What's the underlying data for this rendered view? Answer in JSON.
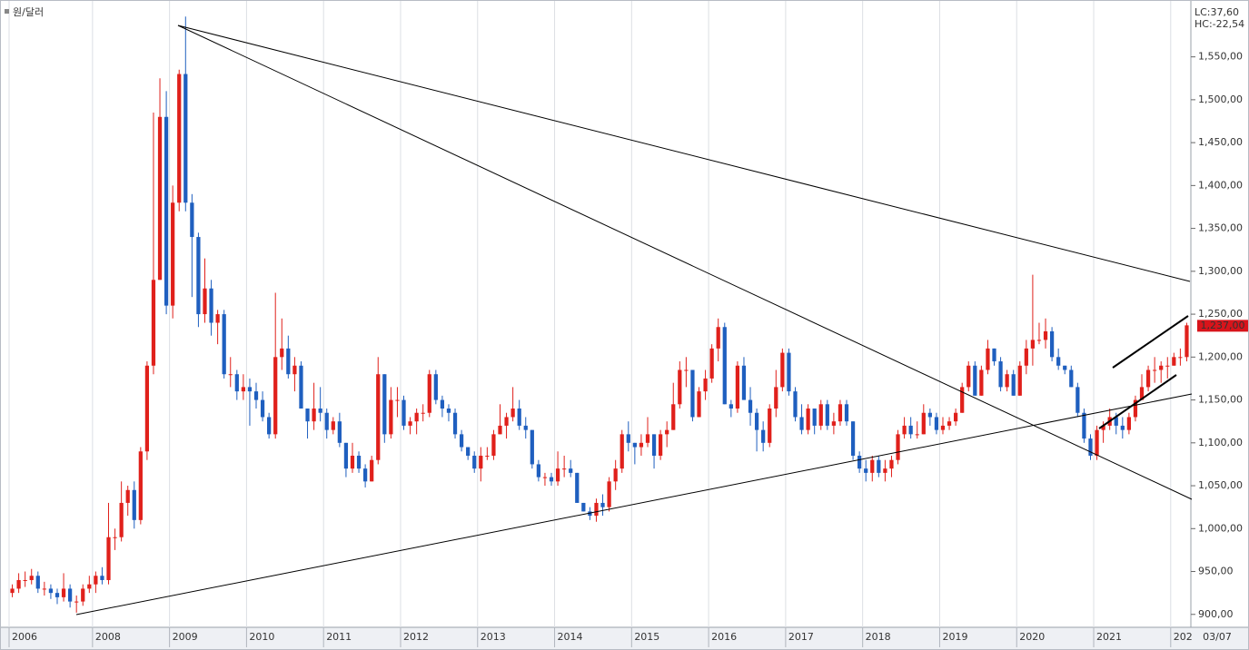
{
  "chart_data": {
    "type": "candlestick",
    "title": "원/달러",
    "indicators": [
      {
        "label": "LC:37,60",
        "color": "#d0141c"
      },
      {
        "label": "HC:-22,54",
        "color": "#1f5fbf"
      }
    ],
    "up_color": "#e0201b",
    "down_color": "#1f5fbf",
    "x_end_label": "03/07",
    "last_price_label": "1,237,00",
    "ylim": [
      886,
      1611
    ],
    "yticks": [
      {
        "value": 900,
        "label": "900,00"
      },
      {
        "value": 950,
        "label": "950,00"
      },
      {
        "value": 1000,
        "label": "1,000,00"
      },
      {
        "value": 1050,
        "label": "1,050,00"
      },
      {
        "value": 1100,
        "label": "1,100,00"
      },
      {
        "value": 1150,
        "label": "1,150,00"
      },
      {
        "value": 1200,
        "label": "1,200,00"
      },
      {
        "value": 1250,
        "label": "1,250,00"
      },
      {
        "value": 1300,
        "label": "1,300,00"
      },
      {
        "value": 1350,
        "label": "1,350,00"
      },
      {
        "value": 1400,
        "label": "1,400,00"
      },
      {
        "value": 1450,
        "label": "1,450,00"
      },
      {
        "value": 1500,
        "label": "1,500,00"
      },
      {
        "value": 1550,
        "label": "1,550,00"
      }
    ],
    "categories": [
      "2006",
      null,
      null,
      null,
      null,
      null,
      null,
      null,
      null,
      null,
      null,
      null,
      null,
      "2008",
      null,
      null,
      null,
      null,
      null,
      null,
      null,
      null,
      null,
      null,
      null,
      "2009",
      null,
      null,
      null,
      null,
      null,
      null,
      null,
      null,
      null,
      null,
      null,
      "2010",
      null,
      null,
      null,
      null,
      null,
      null,
      null,
      null,
      null,
      null,
      null,
      "2011",
      null,
      null,
      null,
      null,
      null,
      null,
      null,
      null,
      null,
      null,
      null,
      "2012",
      null,
      null,
      null,
      null,
      null,
      null,
      null,
      null,
      null,
      null,
      null,
      "2013",
      null,
      null,
      null,
      null,
      null,
      null,
      null,
      null,
      null,
      null,
      null,
      "2014",
      null,
      null,
      null,
      null,
      null,
      null,
      null,
      null,
      null,
      null,
      null,
      "2015",
      null,
      null,
      null,
      null,
      null,
      null,
      null,
      null,
      null,
      null,
      null,
      "2016",
      null,
      null,
      null,
      null,
      null,
      null,
      null,
      null,
      null,
      null,
      null,
      "2017",
      null,
      null,
      null,
      null,
      null,
      null,
      null,
      null,
      null,
      null,
      null,
      "2018",
      null,
      null,
      null,
      null,
      null,
      null,
      null,
      null,
      null,
      null,
      null,
      "2019",
      null,
      null,
      null,
      null,
      null,
      null,
      null,
      null,
      null,
      null,
      null,
      "2020",
      null,
      null,
      null,
      null,
      null,
      null,
      null,
      null,
      null,
      null,
      null,
      "2021",
      null,
      null,
      null,
      null,
      null,
      null,
      null,
      null,
      null,
      null,
      null,
      "202",
      null,
      null
    ],
    "open": [
      925,
      930,
      940,
      940,
      945,
      930,
      930,
      925,
      920,
      930,
      915,
      915,
      930,
      935,
      945,
      940,
      990,
      990,
      1030,
      1045,
      1010,
      1090,
      1190,
      1290,
      1480,
      1260,
      1380,
      1530,
      1380,
      1340,
      1250,
      1280,
      1240,
      1250,
      1180,
      1180,
      1160,
      1165,
      1160,
      1150,
      1130,
      1110,
      1200,
      1210,
      1180,
      1190,
      1140,
      1125,
      1140,
      1135,
      1115,
      1125,
      1100,
      1070,
      1085,
      1070,
      1055,
      1080,
      1180,
      1110,
      1150,
      1150,
      1120,
      1125,
      1135,
      1135,
      1180,
      1150,
      1140,
      1135,
      1110,
      1095,
      1085,
      1070,
      1085,
      1085,
      1110,
      1120,
      1130,
      1140,
      1120,
      1115,
      1075,
      1060,
      1060,
      1055,
      1070,
      1070,
      1065,
      1030,
      1020,
      1015,
      1030,
      1025,
      1055,
      1070,
      1110,
      1100,
      1095,
      1100,
      1110,
      1085,
      1110,
      1115,
      1145,
      1185,
      1185,
      1130,
      1160,
      1175,
      1210,
      1235,
      1145,
      1140,
      1190,
      1150,
      1135,
      1115,
      1100,
      1140,
      1165,
      1205,
      1160,
      1130,
      1115,
      1140,
      1120,
      1145,
      1120,
      1125,
      1145,
      1125,
      1085,
      1070,
      1065,
      1080,
      1065,
      1070,
      1080,
      1110,
      1120,
      1110,
      1110,
      1135,
      1130,
      1115,
      1120,
      1125,
      1135,
      1165,
      1190,
      1155,
      1185,
      1210,
      1195,
      1165,
      1180,
      1155,
      1190,
      1210,
      1220,
      1220,
      1230,
      1200,
      1190,
      1185,
      1165,
      1135,
      1105,
      1085,
      1115,
      1120,
      1130,
      1120,
      1115,
      1130,
      1150,
      1165,
      1185,
      1185,
      1190,
      1190,
      1200,
      1200
    ],
    "high": [
      935,
      948,
      950,
      953,
      950,
      938,
      935,
      930,
      948,
      935,
      922,
      935,
      945,
      950,
      955,
      1030,
      1000,
      1055,
      1050,
      1055,
      1095,
      1195,
      1485,
      1525,
      1510,
      1400,
      1535,
      1597,
      1390,
      1345,
      1315,
      1290,
      1255,
      1255,
      1200,
      1185,
      1180,
      1175,
      1170,
      1160,
      1135,
      1275,
      1245,
      1225,
      1200,
      1195,
      1140,
      1170,
      1165,
      1140,
      1130,
      1135,
      1100,
      1100,
      1090,
      1075,
      1085,
      1200,
      1180,
      1165,
      1165,
      1155,
      1130,
      1140,
      1145,
      1185,
      1185,
      1155,
      1145,
      1140,
      1115,
      1095,
      1090,
      1095,
      1095,
      1115,
      1145,
      1135,
      1165,
      1150,
      1130,
      1115,
      1080,
      1065,
      1065,
      1090,
      1085,
      1080,
      1065,
      1030,
      1025,
      1035,
      1040,
      1060,
      1080,
      1115,
      1125,
      1100,
      1110,
      1130,
      1110,
      1115,
      1125,
      1170,
      1195,
      1200,
      1185,
      1165,
      1185,
      1215,
      1245,
      1240,
      1150,
      1195,
      1200,
      1165,
      1140,
      1125,
      1145,
      1185,
      1210,
      1210,
      1165,
      1145,
      1145,
      1140,
      1150,
      1150,
      1135,
      1150,
      1150,
      1125,
      1090,
      1080,
      1085,
      1085,
      1080,
      1085,
      1115,
      1130,
      1130,
      1125,
      1145,
      1140,
      1135,
      1130,
      1130,
      1140,
      1170,
      1195,
      1195,
      1190,
      1220,
      1210,
      1200,
      1185,
      1185,
      1195,
      1220,
      1296,
      1240,
      1245,
      1235,
      1210,
      1190,
      1190,
      1170,
      1140,
      1110,
      1120,
      1125,
      1140,
      1135,
      1130,
      1135,
      1155,
      1180,
      1190,
      1200,
      1195,
      1200,
      1205,
      1210,
      1240
    ],
    "low": [
      920,
      925,
      932,
      935,
      925,
      922,
      918,
      912,
      915,
      908,
      902,
      910,
      925,
      925,
      935,
      935,
      975,
      985,
      1015,
      1000,
      1005,
      1080,
      1180,
      1290,
      1250,
      1245,
      1370,
      1370,
      1270,
      1235,
      1240,
      1225,
      1215,
      1175,
      1165,
      1150,
      1150,
      1120,
      1140,
      1125,
      1105,
      1105,
      1185,
      1175,
      1160,
      1140,
      1105,
      1115,
      1125,
      1105,
      1110,
      1095,
      1060,
      1065,
      1065,
      1048,
      1055,
      1075,
      1100,
      1105,
      1130,
      1115,
      1110,
      1110,
      1125,
      1130,
      1145,
      1130,
      1125,
      1105,
      1090,
      1080,
      1065,
      1055,
      1080,
      1080,
      1110,
      1105,
      1125,
      1115,
      1105,
      1070,
      1055,
      1050,
      1050,
      1050,
      1060,
      1060,
      1030,
      1020,
      1010,
      1008,
      1015,
      1020,
      1045,
      1065,
      1090,
      1075,
      1085,
      1095,
      1070,
      1080,
      1095,
      1115,
      1140,
      1165,
      1125,
      1130,
      1150,
      1170,
      1195,
      1145,
      1130,
      1135,
      1150,
      1120,
      1090,
      1090,
      1095,
      1130,
      1160,
      1155,
      1125,
      1110,
      1110,
      1110,
      1115,
      1115,
      1110,
      1120,
      1120,
      1080,
      1065,
      1055,
      1055,
      1060,
      1055,
      1060,
      1075,
      1105,
      1105,
      1105,
      1110,
      1120,
      1110,
      1110,
      1115,
      1120,
      1135,
      1160,
      1155,
      1155,
      1180,
      1190,
      1160,
      1160,
      1155,
      1155,
      1180,
      1190,
      1215,
      1210,
      1195,
      1185,
      1180,
      1165,
      1130,
      1100,
      1080,
      1080,
      1100,
      1115,
      1110,
      1105,
      1110,
      1125,
      1150,
      1160,
      1170,
      1170,
      1175,
      1190,
      1190,
      1195
    ],
    "close": [
      930,
      940,
      940,
      945,
      930,
      930,
      925,
      920,
      930,
      915,
      915,
      930,
      935,
      945,
      940,
      990,
      990,
      1030,
      1045,
      1010,
      1090,
      1190,
      1290,
      1480,
      1260,
      1380,
      1530,
      1380,
      1340,
      1250,
      1280,
      1240,
      1250,
      1180,
      1180,
      1160,
      1165,
      1160,
      1150,
      1130,
      1110,
      1200,
      1210,
      1180,
      1190,
      1140,
      1125,
      1140,
      1135,
      1115,
      1125,
      1100,
      1070,
      1085,
      1070,
      1055,
      1080,
      1180,
      1110,
      1150,
      1150,
      1120,
      1125,
      1135,
      1135,
      1180,
      1150,
      1140,
      1135,
      1110,
      1095,
      1085,
      1070,
      1085,
      1085,
      1110,
      1120,
      1130,
      1140,
      1120,
      1115,
      1075,
      1060,
      1060,
      1055,
      1070,
      1070,
      1065,
      1030,
      1020,
      1015,
      1030,
      1025,
      1055,
      1070,
      1110,
      1100,
      1095,
      1100,
      1110,
      1085,
      1110,
      1115,
      1145,
      1185,
      1185,
      1130,
      1160,
      1175,
      1210,
      1235,
      1145,
      1140,
      1190,
      1150,
      1135,
      1115,
      1100,
      1140,
      1165,
      1205,
      1160,
      1130,
      1115,
      1140,
      1120,
      1145,
      1120,
      1125,
      1145,
      1125,
      1085,
      1070,
      1065,
      1080,
      1065,
      1070,
      1080,
      1110,
      1120,
      1110,
      1110,
      1135,
      1130,
      1115,
      1120,
      1125,
      1135,
      1165,
      1190,
      1155,
      1185,
      1210,
      1195,
      1165,
      1180,
      1155,
      1190,
      1210,
      1220,
      1220,
      1230,
      1200,
      1190,
      1185,
      1165,
      1135,
      1105,
      1085,
      1115,
      1120,
      1130,
      1120,
      1115,
      1130,
      1150,
      1165,
      1185,
      1185,
      1190,
      1190,
      1200,
      1200,
      1237
    ]
  }
}
